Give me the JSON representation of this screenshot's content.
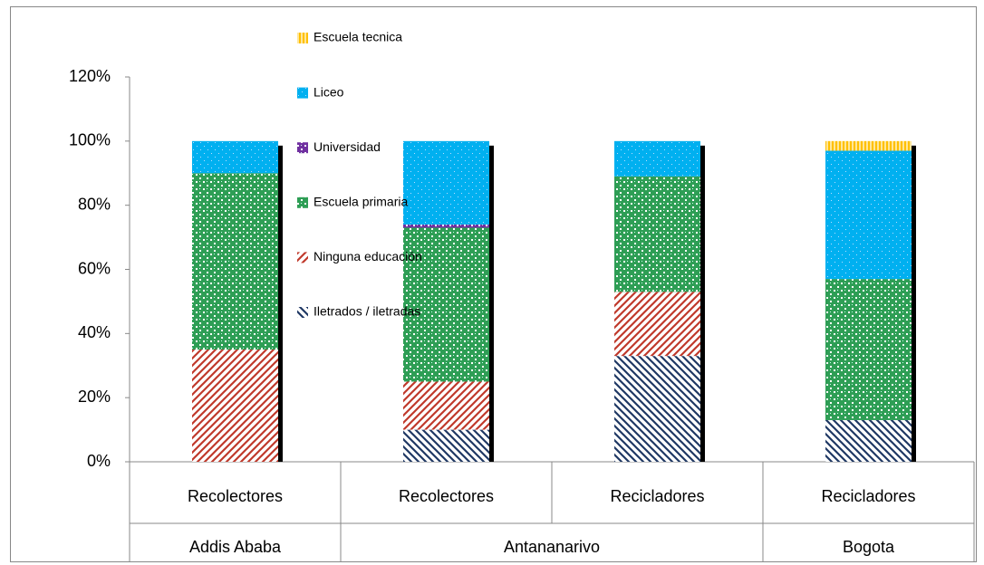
{
  "chart_data": {
    "type": "stacked_bar",
    "categories": [
      "Recolectores",
      "Recolectores",
      "Recicladores",
      "Recicladores"
    ],
    "groups": [
      "Addis Ababa",
      "Antananarivo",
      "Antananarivo",
      "Bogota"
    ],
    "series": [
      {
        "name": "Iletrados / iletradas",
        "color": "#1f3864",
        "values": [
          0,
          10,
          33,
          13
        ]
      },
      {
        "name": "Ninguna educación",
        "color": "#c0392b",
        "values": [
          35,
          15,
          20,
          0
        ]
      },
      {
        "name": "Escuela primaria",
        "color": "#2e9e55",
        "values": [
          55,
          48,
          36,
          44
        ]
      },
      {
        "name": "Universidad",
        "color": "#7030a0",
        "values": [
          0,
          1,
          0,
          0
        ]
      },
      {
        "name": "Liceo",
        "color": "#00b0f0",
        "values": [
          10,
          26,
          11,
          40
        ]
      },
      {
        "name": "Escuela tecnica",
        "color": "#ffc000",
        "values": [
          0,
          0,
          0,
          3
        ]
      }
    ],
    "ylim": [
      0,
      120
    ],
    "yticks": [
      {
        "value": 0,
        "label": "0%"
      },
      {
        "value": 20,
        "label": "20%"
      },
      {
        "value": 40,
        "label": "40%"
      },
      {
        "value": 60,
        "label": "60%"
      },
      {
        "value": 80,
        "label": "80%"
      },
      {
        "value": 100,
        "label": "100%"
      },
      {
        "value": 120,
        "label": "120%"
      }
    ],
    "grid": false
  }
}
